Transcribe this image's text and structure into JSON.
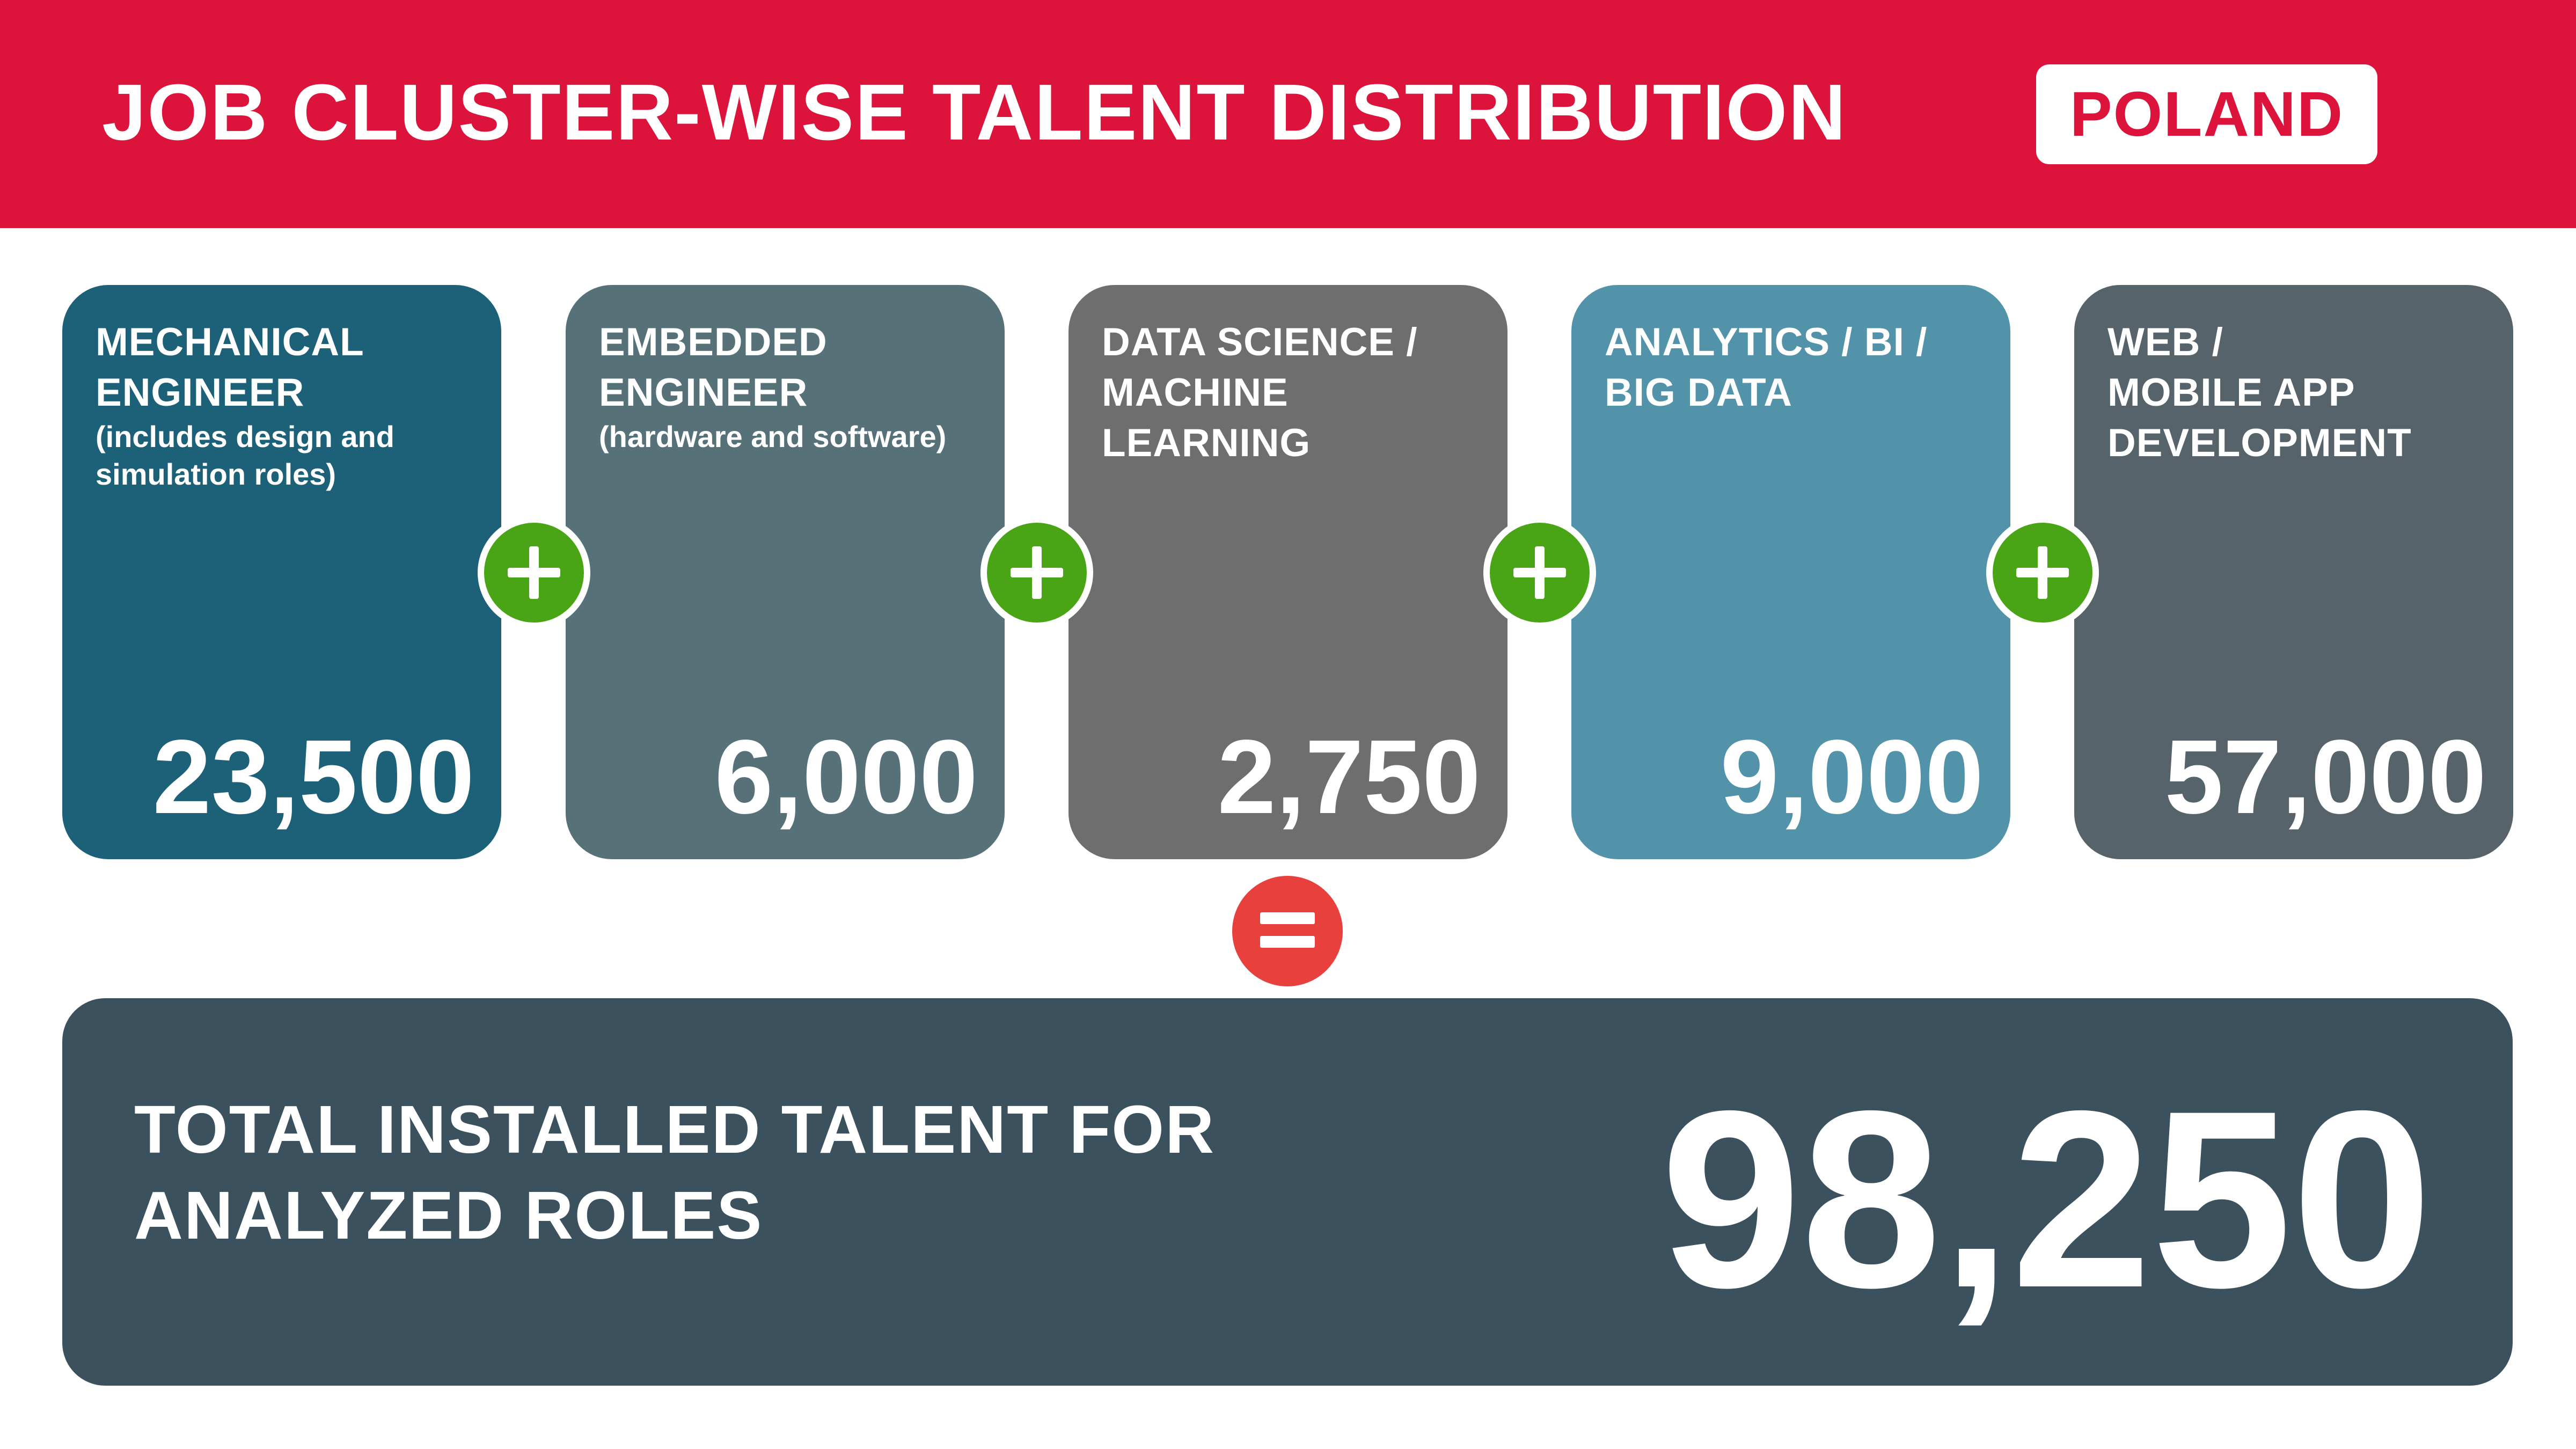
{
  "header": {
    "title": "JOB CLUSTER-WISE TALENT DISTRIBUTION",
    "country": "POLAND",
    "color": "#dc143c"
  },
  "clusters": [
    {
      "title_lines": [
        "MECHANICAL",
        "ENGINEER"
      ],
      "subtitle": "(includes design and\nsimulation roles)",
      "value": "23,500",
      "color": "#1d6178"
    },
    {
      "title_lines": [
        "EMBEDDED",
        "ENGINEER"
      ],
      "subtitle": "(hardware and software)",
      "value": "6,000",
      "color": "#577179"
    },
    {
      "title_lines": [
        "DATA SCIENCE /",
        "MACHINE",
        "LEARNING"
      ],
      "subtitle": "",
      "value": "2,750",
      "color": "#6e6e6e"
    },
    {
      "title_lines": [
        "ANALYTICS / BI /",
        "BIG DATA"
      ],
      "subtitle": "",
      "value": "9,000",
      "color": "#5393aa"
    },
    {
      "title_lines": [
        "WEB /",
        "MOBILE APP",
        "DEVELOPMENT"
      ],
      "subtitle": "",
      "value": "57,000",
      "color": "#56636a"
    }
  ],
  "operators": {
    "plus_icon": "plus-icon",
    "equals_icon": "equals-icon",
    "plus_color": "#4aa516",
    "equals_color": "#e8403d"
  },
  "total": {
    "label_lines": [
      "TOTAL INSTALLED TALENT FOR",
      "ANALYZED ROLES"
    ],
    "value": "98,250",
    "color": "#3c515e"
  }
}
